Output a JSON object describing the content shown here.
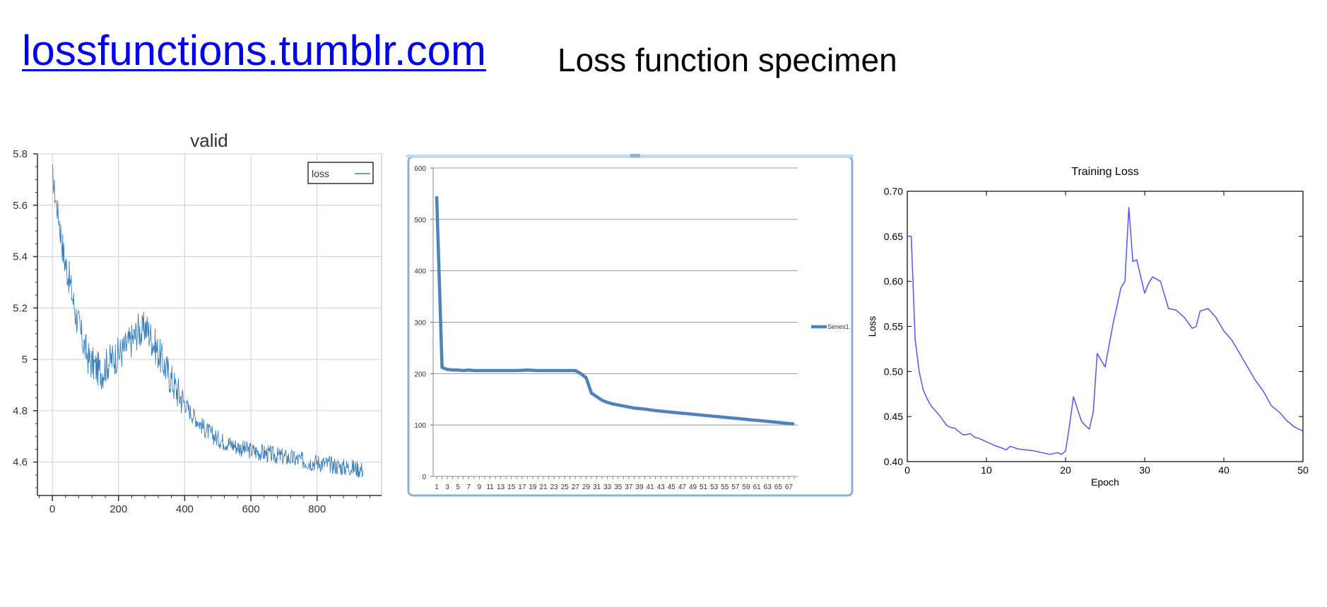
{
  "header": {
    "link_text": "lossfunctions.tumblr.com",
    "subtitle": "Loss function specimen"
  },
  "chart_data": [
    {
      "type": "line",
      "title": "valid",
      "xlabel": "",
      "ylabel": "",
      "xlim": [
        -45,
        995
      ],
      "ylim": [
        4.47,
        5.8
      ],
      "x_ticks": [
        0,
        200,
        400,
        600,
        800
      ],
      "y_ticks": [
        4.6,
        4.8,
        5,
        5.2,
        5.4,
        5.6,
        5.8
      ],
      "y_tick_labels": [
        "4.6",
        "4.8",
        "5",
        "5.2",
        "5.4",
        "5.6",
        "5.8"
      ],
      "grid": true,
      "legend_position": "top-right",
      "series": [
        {
          "name": "loss",
          "color": "#3b7fb8",
          "x": [
            0,
            10,
            20,
            35,
            50,
            70,
            90,
            110,
            130,
            150,
            170,
            190,
            210,
            230,
            250,
            260,
            270,
            280,
            290,
            300,
            315,
            330,
            345,
            360,
            380,
            400,
            420,
            440,
            460,
            480,
            500,
            520,
            540,
            560,
            580,
            600,
            620,
            640,
            660,
            680,
            700,
            720,
            740,
            760,
            780,
            800,
            820,
            840,
            860,
            880,
            900,
            920,
            940
          ],
          "y": [
            5.72,
            5.62,
            5.55,
            5.4,
            5.32,
            5.18,
            5.08,
            5.0,
            4.97,
            4.95,
            4.99,
            5.01,
            5.03,
            5.06,
            5.09,
            5.12,
            5.1,
            5.13,
            5.11,
            5.08,
            5.04,
            5.0,
            4.96,
            4.92,
            4.87,
            4.83,
            4.79,
            4.76,
            4.73,
            4.71,
            4.69,
            4.68,
            4.67,
            4.66,
            4.65,
            4.645,
            4.64,
            4.635,
            4.63,
            4.625,
            4.62,
            4.615,
            4.61,
            4.605,
            4.6,
            4.6,
            4.595,
            4.59,
            4.585,
            4.58,
            4.58,
            4.575,
            4.57
          ]
        }
      ]
    },
    {
      "type": "line",
      "title": "",
      "xlabel": "",
      "ylabel": "",
      "ylim": [
        0,
        600
      ],
      "y_ticks": [
        0,
        100,
        200,
        300,
        400,
        500,
        600
      ],
      "categories": [
        "1",
        "3",
        "5",
        "7",
        "9",
        "11",
        "13",
        "15",
        "17",
        "19",
        "21",
        "23",
        "25",
        "27",
        "29",
        "31",
        "33",
        "35",
        "37",
        "39",
        "41",
        "43",
        "45",
        "47",
        "49",
        "51",
        "53",
        "55",
        "57",
        "59",
        "61",
        "63",
        "65",
        "67"
      ],
      "grid": true,
      "legend_position": "right",
      "series": [
        {
          "name": "Series1",
          "color": "#4f81bd",
          "x": [
            1,
            2,
            3,
            4,
            5,
            6,
            7,
            8,
            9,
            10,
            12,
            14,
            16,
            18,
            20,
            22,
            24,
            26,
            27,
            28,
            29,
            30,
            31,
            32,
            33,
            34,
            35,
            36,
            37,
            38,
            40,
            42,
            44,
            46,
            48,
            50,
            52,
            54,
            56,
            58,
            60,
            62,
            64,
            66,
            68
          ],
          "y": [
            545,
            212,
            208,
            207,
            207,
            206,
            207,
            206,
            206,
            206,
            206,
            206,
            206,
            207,
            206,
            206,
            206,
            206,
            206,
            200,
            192,
            162,
            155,
            148,
            144,
            141,
            139,
            137,
            135,
            133,
            131,
            128,
            126,
            124,
            122,
            120,
            118,
            116,
            114,
            112,
            110,
            108,
            106,
            104,
            102
          ]
        }
      ]
    },
    {
      "type": "line",
      "title": "Training Loss",
      "xlabel": "Epoch",
      "ylabel": "Loss",
      "xlim": [
        0,
        50
      ],
      "ylim": [
        0.4,
        0.7
      ],
      "x_ticks": [
        0,
        10,
        20,
        30,
        40,
        50
      ],
      "y_ticks": [
        0.4,
        0.45,
        0.5,
        0.55,
        0.6,
        0.65,
        0.7
      ],
      "y_tick_labels": [
        "0.40",
        "0.45",
        "0.50",
        "0.55",
        "0.60",
        "0.65",
        "0.70"
      ],
      "grid": false,
      "series": [
        {
          "color": "#5555ee",
          "x": [
            0,
            0.5,
            1,
            1.5,
            2,
            2.5,
            3,
            4,
            5,
            5.5,
            6,
            7,
            7.5,
            8,
            8.5,
            9,
            10,
            11,
            12,
            12.5,
            13,
            14,
            15,
            16,
            17,
            18,
            19,
            19.5,
            20,
            20.5,
            21,
            22,
            22.5,
            23,
            23.5,
            24,
            25,
            26,
            27,
            27.5,
            28,
            28.5,
            29,
            29.5,
            30,
            30.5,
            31,
            32,
            33,
            34,
            35,
            36,
            36.5,
            37,
            38,
            39,
            40,
            41,
            42,
            43,
            44,
            45,
            46,
            47,
            48,
            49,
            50
          ],
          "y": [
            0.65,
            0.65,
            0.535,
            0.5,
            0.48,
            0.47,
            0.462,
            0.452,
            0.44,
            0.438,
            0.437,
            0.43,
            0.43,
            0.431,
            0.427,
            0.426,
            0.422,
            0.418,
            0.415,
            0.413,
            0.417,
            0.414,
            0.413,
            0.412,
            0.41,
            0.408,
            0.41,
            0.408,
            0.412,
            0.44,
            0.472,
            0.445,
            0.44,
            0.436,
            0.455,
            0.52,
            0.505,
            0.553,
            0.593,
            0.6,
            0.682,
            0.622,
            0.624,
            0.605,
            0.587,
            0.598,
            0.605,
            0.6,
            0.57,
            0.568,
            0.56,
            0.548,
            0.55,
            0.567,
            0.57,
            0.56,
            0.545,
            0.535,
            0.52,
            0.505,
            0.49,
            0.478,
            0.462,
            0.455,
            0.445,
            0.438,
            0.434
          ]
        }
      ]
    }
  ]
}
